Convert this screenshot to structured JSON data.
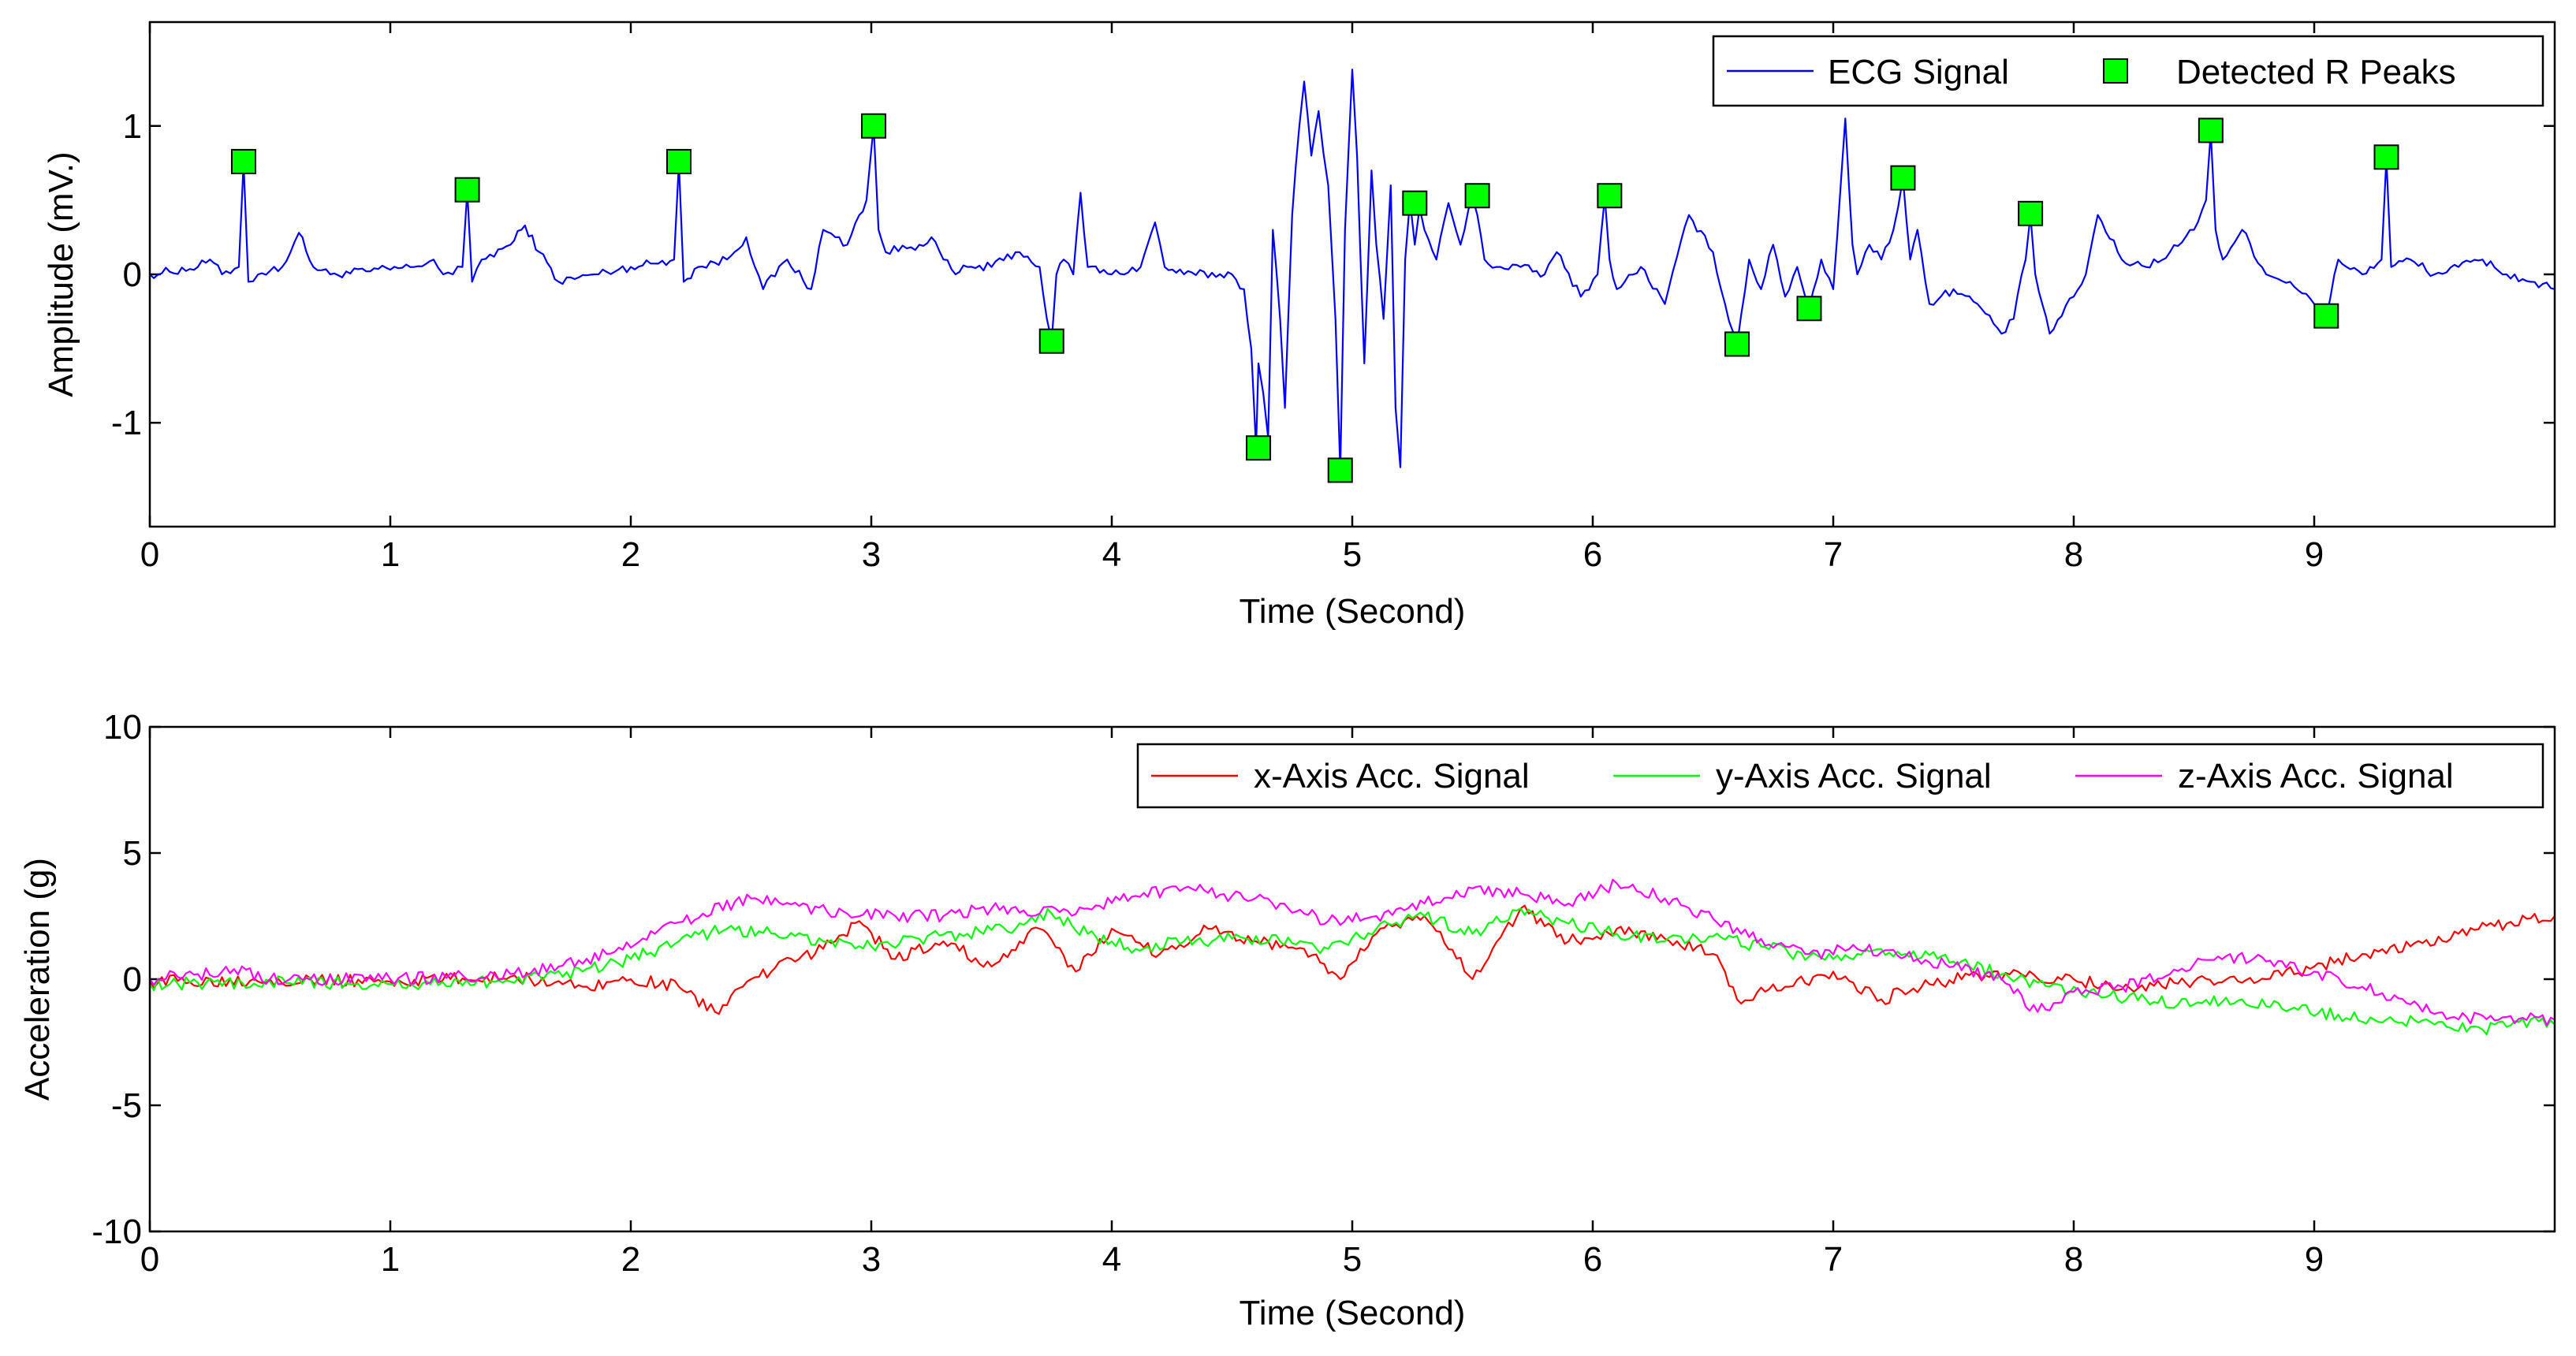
{
  "chart_data": [
    {
      "type": "line",
      "title": "",
      "xlabel": "Time (Second)",
      "ylabel": "Amplitude (mV.)",
      "xlim": [
        0,
        10
      ],
      "ylim": [
        -1.7,
        1.7
      ],
      "xticks": [
        0,
        1,
        2,
        3,
        4,
        5,
        6,
        7,
        8,
        9
      ],
      "yticks": [
        -1,
        0,
        1
      ],
      "grid": false,
      "legend_position": "top-right",
      "series": [
        {
          "name": "ECG Signal",
          "kind": "line",
          "color": "#0000ff",
          "x": [
            0,
            0.2,
            0.25,
            0.3,
            0.37,
            0.39,
            0.41,
            0.45,
            0.55,
            0.62,
            0.68,
            0.75,
            0.9,
            1.1,
            1.18,
            1.22,
            1.26,
            1.3,
            1.32,
            1.34,
            1.38,
            1.5,
            1.56,
            1.62,
            1.7,
            1.85,
            2.0,
            2.18,
            2.2,
            2.22,
            2.28,
            2.4,
            2.48,
            2.55,
            2.65,
            2.75,
            2.8,
            2.9,
            2.95,
            2.98,
            3.01,
            3.03,
            3.06,
            3.2,
            3.25,
            3.3,
            3.35,
            3.4,
            3.5,
            3.6,
            3.65,
            3.7,
            3.73,
            3.75,
            3.77,
            3.8,
            3.84,
            3.87,
            3.9,
            4.0,
            4.12,
            4.18,
            4.22,
            4.3,
            4.5,
            4.55,
            4.58,
            4.6,
            4.61,
            4.63,
            4.65,
            4.67,
            4.7,
            4.72,
            4.75,
            4.78,
            4.8,
            4.83,
            4.86,
            4.9,
            4.93,
            4.95,
            4.97,
            5.0,
            5.02,
            5.05,
            5.08,
            5.1,
            5.13,
            5.16,
            5.18,
            5.2,
            5.22,
            5.24,
            5.26,
            5.28,
            5.3,
            5.35,
            5.4,
            5.45,
            5.5,
            5.52,
            5.55,
            5.6,
            5.7,
            5.8,
            5.85,
            5.95,
            6.02,
            6.05,
            6.07,
            6.1,
            6.2,
            6.3,
            6.4,
            6.5,
            6.55,
            6.6,
            6.65,
            6.7,
            6.75,
            6.8,
            6.85,
            6.9,
            6.95,
            7.0,
            7.05,
            7.08,
            7.1,
            7.15,
            7.2,
            7.25,
            7.29,
            7.32,
            7.35,
            7.4,
            7.5,
            7.6,
            7.7,
            7.75,
            7.8,
            7.82,
            7.84,
            7.9,
            8.0,
            8.05,
            8.1,
            8.2,
            8.3,
            8.4,
            8.5,
            8.55,
            8.57,
            8.59,
            8.62,
            8.7,
            8.8,
            8.9,
            9.0,
            9.05,
            9.1,
            9.2,
            9.28,
            9.3,
            9.32,
            9.4,
            9.5,
            9.6,
            9.7,
            9.8,
            9.9,
            10.0
          ],
          "y": [
            0.0,
            0.05,
            0.1,
            0.0,
            0.05,
            0.75,
            -0.05,
            0.0,
            0.05,
            0.28,
            0.05,
            0.0,
            0.02,
            0.05,
            0.1,
            0.0,
            0.0,
            0.05,
            0.56,
            -0.05,
            0.1,
            0.2,
            0.33,
            0.15,
            -0.05,
            0.0,
            0.05,
            0.1,
            0.75,
            -0.05,
            0.05,
            0.1,
            0.25,
            -0.1,
            0.1,
            -0.1,
            0.3,
            0.2,
            0.4,
            0.5,
            1.0,
            0.3,
            0.15,
            0.2,
            0.25,
            0.1,
            0.0,
            0.05,
            0.05,
            0.15,
            0.12,
            0.05,
            -0.3,
            -0.45,
            0.0,
            0.1,
            0.0,
            0.55,
            0.05,
            0.0,
            0.05,
            0.35,
            0.05,
            0.0,
            0.0,
            -0.1,
            -0.5,
            -1.17,
            -0.6,
            -0.8,
            -1.1,
            0.3,
            -0.3,
            -0.9,
            0.4,
            1.0,
            1.3,
            0.8,
            1.1,
            0.6,
            -0.3,
            -1.32,
            0.3,
            1.38,
            0.8,
            -0.6,
            0.7,
            0.2,
            -0.3,
            0.6,
            -0.9,
            -1.3,
            0.1,
            0.5,
            0.2,
            0.45,
            0.3,
            0.1,
            0.48,
            0.2,
            0.52,
            0.4,
            0.1,
            0.05,
            0.05,
            0.0,
            0.15,
            -0.15,
            0.0,
            0.52,
            0.1,
            -0.1,
            0.05,
            -0.2,
            0.4,
            0.15,
            -0.2,
            -0.48,
            0.1,
            -0.1,
            0.2,
            -0.15,
            0.05,
            -0.23,
            0.1,
            -0.1,
            1.05,
            0.2,
            0.0,
            0.2,
            0.1,
            0.3,
            0.65,
            0.1,
            0.3,
            -0.2,
            -0.1,
            -0.2,
            -0.4,
            -0.3,
            0.1,
            0.4,
            0.0,
            -0.4,
            -0.15,
            0.0,
            0.4,
            0.1,
            0.05,
            0.15,
            0.3,
            0.5,
            0.96,
            0.3,
            0.1,
            0.3,
            0.0,
            -0.05,
            -0.2,
            -0.29,
            0.1,
            0.0,
            0.1,
            0.78,
            0.05,
            0.1,
            0.0,
            0.05,
            0.1,
            0.0,
            -0.05,
            -0.1
          ]
        },
        {
          "name": "Detected R Peaks",
          "kind": "marker",
          "color": "#00ff00",
          "x": [
            0.39,
            1.32,
            2.2,
            3.01,
            3.75,
            4.61,
            4.95,
            5.26,
            5.52,
            6.07,
            6.6,
            6.9,
            7.29,
            7.82,
            8.57,
            9.05,
            9.3
          ],
          "y": [
            0.76,
            0.57,
            0.76,
            1.0,
            -0.45,
            -1.17,
            -1.32,
            0.48,
            0.53,
            0.53,
            -0.47,
            -0.23,
            0.65,
            0.41,
            0.97,
            -0.28,
            0.79
          ]
        }
      ]
    },
    {
      "type": "line",
      "title": "",
      "xlabel": "Time (Second)",
      "ylabel": "Acceleration (g)",
      "xlim": [
        0,
        10
      ],
      "ylim": [
        -10,
        10
      ],
      "xticks": [
        0,
        1,
        2,
        3,
        4,
        5,
        6,
        7,
        8,
        9
      ],
      "yticks": [
        -10,
        -5,
        0,
        5,
        10
      ],
      "grid": false,
      "legend_position": "top-right",
      "series": [
        {
          "name": "x-Axis Acc. Signal",
          "color": "#ff0000",
          "x": [
            0,
            0.5,
            1.0,
            1.5,
            1.8,
            2.0,
            2.2,
            2.35,
            2.5,
            2.7,
            2.85,
            2.95,
            3.1,
            3.3,
            3.5,
            3.7,
            3.85,
            4.0,
            4.2,
            4.4,
            4.6,
            4.8,
            4.95,
            5.1,
            5.3,
            5.5,
            5.7,
            5.9,
            6.1,
            6.3,
            6.5,
            6.6,
            6.8,
            7.0,
            7.2,
            7.4,
            7.6,
            7.8,
            8.0,
            8.2,
            8.5,
            8.8,
            9.0,
            9.2,
            9.4,
            9.6,
            9.8,
            10.0
          ],
          "y": [
            -0.1,
            0.0,
            -0.1,
            0.1,
            -0.3,
            0.0,
            -0.3,
            -1.3,
            0.0,
            0.8,
            1.5,
            2.3,
            0.8,
            1.5,
            0.5,
            2.0,
            0.3,
            2.0,
            1.0,
            2.0,
            1.5,
            1.2,
            0.0,
            1.8,
            2.5,
            0.0,
            2.8,
            1.5,
            2.0,
            1.6,
            1.0,
            -0.8,
            -0.3,
            0.3,
            -0.8,
            -0.2,
            0.2,
            0.1,
            0.0,
            -0.4,
            -0.1,
            0.0,
            0.5,
            1.0,
            1.3,
            1.8,
            2.2,
            2.5
          ]
        },
        {
          "name": "y-Axis Acc. Signal",
          "color": "#00ff00",
          "x": [
            0,
            0.5,
            1.0,
            1.5,
            1.8,
            2.0,
            2.2,
            2.4,
            2.6,
            2.8,
            3.0,
            3.2,
            3.4,
            3.6,
            3.75,
            3.9,
            4.1,
            4.3,
            4.5,
            4.7,
            4.9,
            5.1,
            5.3,
            5.5,
            5.7,
            5.9,
            6.1,
            6.3,
            6.5,
            6.7,
            6.9,
            7.1,
            7.3,
            7.5,
            7.7,
            7.9,
            8.1,
            8.3,
            8.5,
            8.7,
            8.9,
            9.1,
            9.3,
            9.5,
            9.7,
            9.85,
            10.0
          ],
          "y": [
            -0.2,
            -0.1,
            -0.2,
            -0.1,
            0.3,
            0.8,
            1.5,
            2.0,
            1.8,
            1.5,
            1.3,
            1.6,
            1.8,
            2.0,
            2.6,
            1.8,
            1.2,
            1.5,
            1.6,
            1.5,
            1.2,
            2.0,
            2.5,
            1.8,
            2.8,
            2.2,
            1.8,
            1.5,
            1.7,
            1.3,
            0.9,
            1.0,
            1.0,
            0.7,
            0.2,
            -0.3,
            -0.6,
            -0.8,
            -1.0,
            -0.8,
            -1.2,
            -1.4,
            -1.6,
            -1.8,
            -2.0,
            -1.7,
            -1.8
          ]
        },
        {
          "name": "z-Axis Acc. Signal",
          "color": "#ff00ff",
          "x": [
            0,
            0.2,
            0.35,
            0.5,
            1.0,
            1.5,
            1.7,
            1.9,
            2.1,
            2.3,
            2.5,
            2.7,
            2.9,
            3.1,
            3.3,
            3.5,
            3.7,
            3.9,
            4.1,
            4.3,
            4.5,
            4.7,
            4.9,
            5.1,
            5.3,
            5.5,
            5.7,
            5.9,
            6.1,
            6.3,
            6.5,
            6.7,
            6.9,
            7.1,
            7.3,
            7.5,
            7.7,
            7.85,
            8.0,
            8.2,
            8.4,
            8.6,
            8.8,
            9.0,
            9.2,
            9.4,
            9.6,
            9.8,
            10.0
          ],
          "y": [
            0.0,
            0.2,
            0.4,
            0.0,
            0.0,
            0.2,
            0.5,
            1.0,
            1.8,
            2.6,
            3.2,
            2.9,
            2.6,
            2.5,
            2.5,
            2.8,
            2.6,
            2.8,
            3.3,
            3.6,
            3.3,
            3.0,
            2.3,
            2.5,
            3.0,
            3.6,
            3.4,
            3.0,
            3.8,
            3.2,
            2.4,
            1.6,
            1.0,
            1.2,
            0.9,
            0.5,
            0.0,
            -1.3,
            -0.5,
            -0.3,
            0.2,
            0.9,
            0.7,
            0.3,
            -0.3,
            -1.0,
            -1.6,
            -1.5,
            -1.6
          ]
        }
      ]
    }
  ]
}
